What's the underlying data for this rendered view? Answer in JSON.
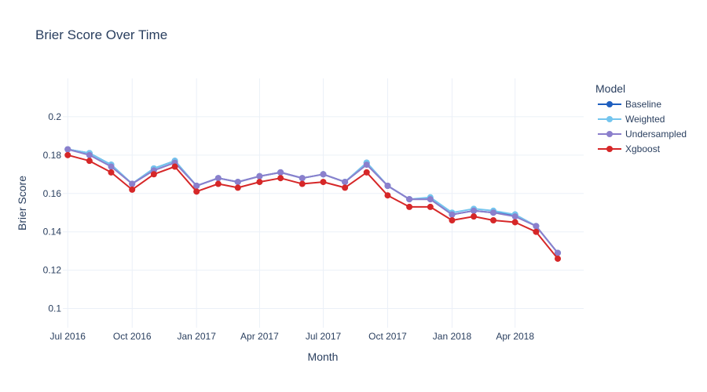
{
  "chart_data": {
    "type": "line",
    "title": "Brier Score Over Time",
    "xlabel": "Month",
    "ylabel": "Brier Score",
    "legend_title": "Model",
    "legend_position": "top-right",
    "grid": true,
    "ylim": [
      0.09,
      0.22
    ],
    "xlim": [
      "2016-06-24",
      "2018-07-08"
    ],
    "x_ticks": [
      {
        "label": "Jul 2016",
        "date": "2016-07-01"
      },
      {
        "label": "Oct 2016",
        "date": "2016-10-01"
      },
      {
        "label": "Jan 2017",
        "date": "2017-01-01"
      },
      {
        "label": "Apr 2017",
        "date": "2017-04-01"
      },
      {
        "label": "Jul 2017",
        "date": "2017-07-01"
      },
      {
        "label": "Oct 2017",
        "date": "2017-10-01"
      },
      {
        "label": "Jan 2018",
        "date": "2018-01-01"
      },
      {
        "label": "Apr 2018",
        "date": "2018-04-01"
      }
    ],
    "y_ticks": [
      "0.1",
      "0.12",
      "0.14",
      "0.16",
      "0.18",
      "0.2"
    ],
    "x": [
      "2016-07-01",
      "2016-08-01",
      "2016-09-01",
      "2016-10-01",
      "2016-11-01",
      "2016-12-01",
      "2017-01-01",
      "2017-02-01",
      "2017-03-01",
      "2017-04-01",
      "2017-05-01",
      "2017-06-01",
      "2017-07-01",
      "2017-08-01",
      "2017-09-01",
      "2017-10-01",
      "2017-11-01",
      "2017-12-01",
      "2018-01-01",
      "2018-02-01",
      "2018-03-01",
      "2018-04-01",
      "2018-05-01",
      "2018-06-01"
    ],
    "series": [
      {
        "name": "Baseline",
        "color": "#1f5fbf",
        "values": [
          0.183,
          0.181,
          0.175,
          0.165,
          0.173,
          0.177,
          0.164,
          0.168,
          0.166,
          0.169,
          0.171,
          0.168,
          0.17,
          0.166,
          0.176,
          0.164,
          0.157,
          0.157,
          0.149,
          0.151,
          0.15,
          0.149,
          0.143,
          0.129
        ]
      },
      {
        "name": "Weighted",
        "color": "#74c5ee",
        "values": [
          0.183,
          0.181,
          0.175,
          0.165,
          0.173,
          0.177,
          0.164,
          0.168,
          0.166,
          0.169,
          0.171,
          0.168,
          0.17,
          0.166,
          0.176,
          0.164,
          0.157,
          0.158,
          0.15,
          0.152,
          0.151,
          0.149,
          0.143,
          0.129
        ]
      },
      {
        "name": "Undersampled",
        "color": "#8b7fcc",
        "values": [
          0.183,
          0.18,
          0.174,
          0.165,
          0.172,
          0.176,
          0.164,
          0.168,
          0.166,
          0.169,
          0.171,
          0.168,
          0.17,
          0.166,
          0.175,
          0.164,
          0.157,
          0.157,
          0.149,
          0.151,
          0.15,
          0.148,
          0.143,
          0.129
        ]
      },
      {
        "name": "Xgboost",
        "color": "#d62728",
        "values": [
          0.18,
          0.177,
          0.171,
          0.162,
          0.17,
          0.174,
          0.161,
          0.165,
          0.163,
          0.166,
          0.168,
          0.165,
          0.166,
          0.163,
          0.171,
          0.159,
          0.153,
          0.153,
          0.146,
          0.148,
          0.146,
          0.145,
          0.14,
          0.126
        ]
      }
    ]
  }
}
